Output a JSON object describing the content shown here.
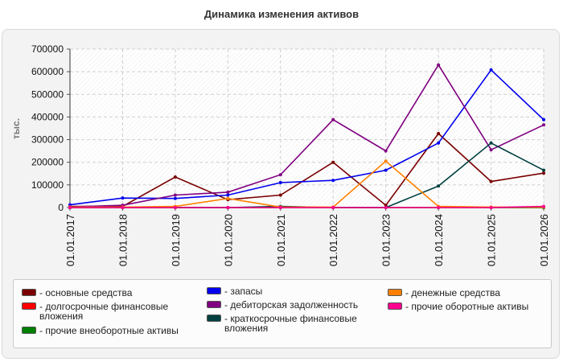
{
  "title": "Динамика изменения активов",
  "chart_data": {
    "type": "line",
    "title": "Динамика изменения активов",
    "ylabel": "тыс.",
    "xlabel": "",
    "ylim": [
      0,
      700000
    ],
    "yticks": [
      "0",
      "100000",
      "200000",
      "300000",
      "400000",
      "500000",
      "600000",
      "700000"
    ],
    "categories": [
      "01.01.2017",
      "01.01.2018",
      "01.01.2019",
      "01.01.2020",
      "01.01.2021",
      "01.01.2022",
      "01.01.2023",
      "01.01.2024",
      "01.01.2025",
      "01.01.2026"
    ],
    "grid": true,
    "legend_position": "bottom",
    "series": [
      {
        "name": "- основные средства",
        "color": "#7b0000",
        "values": [
          5000,
          5000,
          135000,
          35000,
          55000,
          200000,
          10000,
          327000,
          115000,
          152000
        ]
      },
      {
        "name": "- долгосрочные финансовые вложения",
        "color": "#ff0000",
        "values": [
          0,
          0,
          0,
          0,
          0,
          0,
          0,
          0,
          0,
          0
        ]
      },
      {
        "name": "- прочие внеоборотные активы",
        "color": "#008000",
        "values": [
          0,
          0,
          0,
          0,
          0,
          0,
          0,
          0,
          0,
          0
        ]
      },
      {
        "name": "- запасы",
        "color": "#0000ee",
        "values": [
          12000,
          42000,
          40000,
          55000,
          110000,
          120000,
          165000,
          285000,
          608000,
          388000
        ]
      },
      {
        "name": "- дебиторская задолженность",
        "color": "#800080",
        "values": [
          3000,
          10000,
          55000,
          68000,
          145000,
          388000,
          250000,
          630000,
          255000,
          365000
        ]
      },
      {
        "name": "- краткосрочные финансовые вложения",
        "color": "#004040",
        "values": [
          0,
          0,
          0,
          0,
          5000,
          0,
          0,
          95000,
          285000,
          165000
        ]
      },
      {
        "name": "- денежные средства",
        "color": "#ff8000",
        "values": [
          2000,
          2000,
          5000,
          40000,
          2000,
          2000,
          205000,
          5000,
          2000,
          2000
        ]
      },
      {
        "name": "- прочие оборотные активы",
        "color": "#ff0090",
        "values": [
          0,
          0,
          0,
          0,
          0,
          0,
          0,
          0,
          0,
          5000
        ]
      }
    ]
  }
}
